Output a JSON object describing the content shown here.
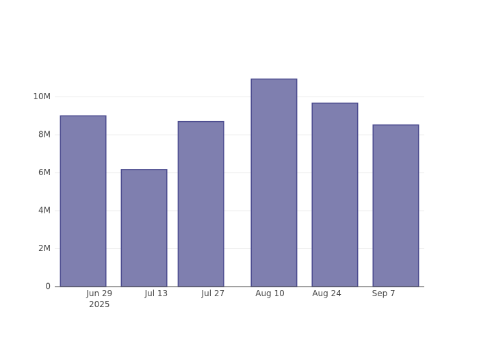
{
  "chart_data": {
    "type": "bar",
    "x": [
      "2025-06-25",
      "2025-07-10",
      "2025-07-24",
      "2025-08-11",
      "2025-08-26",
      "2025-09-10"
    ],
    "values": [
      9000000,
      6170000,
      8700000,
      10940000,
      9670000,
      8520000
    ],
    "color": "#7f7faf",
    "xlim": [
      "2025-06-18",
      "2025-09-17"
    ],
    "xticks": [
      {
        "value": "2025-06-29",
        "label": "Jun 29\n2025"
      },
      {
        "value": "2025-07-13",
        "label": "Jul 13"
      },
      {
        "value": "2025-07-27",
        "label": "Jul 27"
      },
      {
        "value": "2025-08-10",
        "label": "Aug 10"
      },
      {
        "value": "2025-08-24",
        "label": "Aug 24"
      },
      {
        "value": "2025-09-07",
        "label": "Sep 7"
      }
    ],
    "ylim": [
      0,
      11500000
    ],
    "yticks": [
      0,
      {
        "value": 2000000,
        "label": "2M"
      },
      {
        "value": 4000000,
        "label": "4M"
      },
      {
        "value": 6000000,
        "label": "6M"
      },
      {
        "value": 8000000,
        "label": "8M"
      },
      {
        "value": 10000000,
        "label": "10M"
      }
    ],
    "grid": true
  }
}
